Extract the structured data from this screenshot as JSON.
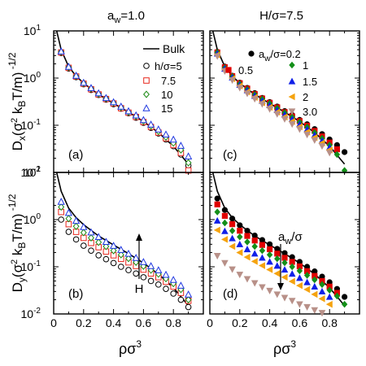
{
  "figure": {
    "top_left_title": "a_w=1.0",
    "top_right_title": "H/σ=7.5",
    "ylabel_top": "D_x(σ² k_B T/m)^-1/2",
    "ylabel_bottom": "D_y(σ² k_B T/m)^-1/2",
    "xlabel": "ρσ³"
  },
  "colors": {
    "bulk": "#000000",
    "h5": "#000000",
    "h7_5": "#e8261c",
    "h10": "#1b8a14",
    "h15": "#1f37e0",
    "a0_2": "#000000",
    "a0_5": "#e00000",
    "a1": "#138f19",
    "a1_5": "#1020e8",
    "a2": "#f5a30f",
    "a3": "#b89088"
  },
  "chart_data": [
    {
      "panel": "(a)",
      "type": "scatter",
      "title": "a_w=1.0",
      "ylabel": "D_x(σ² k_B T/m)^-1/2",
      "xlabel": "",
      "xlim": [
        0,
        1.0
      ],
      "ylim": [
        0.01,
        10
      ],
      "yscale": "log",
      "xticks": [
        0,
        0.2,
        0.4,
        0.6,
        0.8
      ],
      "yticks": [
        "10^-2",
        "10^-1",
        "10^0",
        "10^1"
      ],
      "legend": [
        "Bulk",
        "h/σ=5",
        "7.5",
        "10",
        "15"
      ],
      "curve": {
        "name": "Bulk",
        "x": [
          0.02,
          0.05,
          0.1,
          0.15,
          0.2,
          0.3,
          0.4,
          0.5,
          0.6,
          0.7,
          0.8,
          0.9
        ],
        "y": [
          10,
          4.0,
          1.75,
          1.1,
          0.78,
          0.45,
          0.29,
          0.19,
          0.12,
          0.07,
          0.036,
          0.015
        ]
      },
      "series": [
        {
          "name": "h/σ=5",
          "marker": "circle-open",
          "x": [
            0.05,
            0.1,
            0.15,
            0.2,
            0.25,
            0.3,
            0.35,
            0.4,
            0.45,
            0.5,
            0.55,
            0.6,
            0.65,
            0.7,
            0.75,
            0.8,
            0.85,
            0.9
          ],
          "y": [
            3.4,
            1.6,
            1.05,
            0.74,
            0.56,
            0.44,
            0.35,
            0.28,
            0.225,
            0.18,
            0.145,
            0.113,
            0.088,
            0.067,
            0.05,
            0.036,
            0.024,
            0.014
          ]
        },
        {
          "name": "7.5",
          "marker": "square-open",
          "x": [
            0.05,
            0.1,
            0.15,
            0.2,
            0.25,
            0.3,
            0.35,
            0.4,
            0.45,
            0.5,
            0.55,
            0.6,
            0.65,
            0.7,
            0.75,
            0.8,
            0.85,
            0.9
          ],
          "y": [
            3.5,
            1.65,
            1.08,
            0.76,
            0.58,
            0.45,
            0.36,
            0.29,
            0.23,
            0.185,
            0.15,
            0.117,
            0.092,
            0.07,
            0.053,
            0.038,
            0.026,
            0.011
          ]
        },
        {
          "name": "10",
          "marker": "diamond-open",
          "x": [
            0.05,
            0.1,
            0.15,
            0.2,
            0.25,
            0.3,
            0.35,
            0.4,
            0.45,
            0.5,
            0.55,
            0.6,
            0.65,
            0.7,
            0.75,
            0.8,
            0.85,
            0.9
          ],
          "y": [
            3.6,
            1.7,
            1.1,
            0.78,
            0.6,
            0.46,
            0.37,
            0.3,
            0.24,
            0.19,
            0.155,
            0.122,
            0.096,
            0.074,
            0.056,
            0.042,
            0.03,
            0.016
          ]
        },
        {
          "name": "15",
          "marker": "triangle-open",
          "x": [
            0.05,
            0.1,
            0.15,
            0.2,
            0.25,
            0.3,
            0.35,
            0.4,
            0.45,
            0.5,
            0.55,
            0.6,
            0.65,
            0.7,
            0.75,
            0.8,
            0.85,
            0.9
          ],
          "y": [
            3.7,
            1.75,
            1.13,
            0.8,
            0.62,
            0.48,
            0.38,
            0.31,
            0.25,
            0.2,
            0.163,
            0.13,
            0.104,
            0.082,
            0.064,
            0.05,
            0.037,
            0.022
          ]
        }
      ]
    },
    {
      "panel": "(c)",
      "type": "scatter",
      "title": "H/σ=7.5",
      "xlim": [
        0,
        1.0
      ],
      "ylim": [
        0.01,
        10
      ],
      "yscale": "log",
      "legend": [
        "a_w/σ=0.2",
        "0.5",
        "1",
        "1.5",
        "2",
        "3.0"
      ],
      "curve": {
        "name": "Bulk",
        "x": [
          0.02,
          0.05,
          0.1,
          0.15,
          0.2,
          0.3,
          0.4,
          0.5,
          0.6,
          0.7,
          0.8,
          0.9
        ],
        "y": [
          10,
          4.0,
          1.75,
          1.1,
          0.78,
          0.45,
          0.29,
          0.19,
          0.12,
          0.07,
          0.036,
          0.015
        ]
      },
      "series": [
        {
          "name": "a_w/σ=0.2",
          "marker": "circle",
          "x": [
            0.05,
            0.1,
            0.15,
            0.2,
            0.25,
            0.3,
            0.35,
            0.4,
            0.45,
            0.5,
            0.55,
            0.6,
            0.65,
            0.7,
            0.75,
            0.8,
            0.85,
            0.9
          ],
          "y": [
            3.6,
            1.75,
            1.12,
            0.8,
            0.62,
            0.48,
            0.38,
            0.31,
            0.25,
            0.2,
            0.165,
            0.13,
            0.105,
            0.083,
            0.065,
            0.05,
            0.038,
            0.027
          ]
        },
        {
          "name": "0.5",
          "marker": "square",
          "x": [
            0.05,
            0.1,
            0.15,
            0.2,
            0.25,
            0.3,
            0.35,
            0.4,
            0.45,
            0.5,
            0.55,
            0.6,
            0.65,
            0.7,
            0.75,
            0.8,
            0.85
          ],
          "y": [
            3.5,
            1.7,
            1.1,
            0.78,
            0.6,
            0.46,
            0.37,
            0.3,
            0.24,
            0.19,
            0.155,
            0.123,
            0.098,
            0.076,
            0.058,
            0.043,
            0.031
          ]
        },
        {
          "name": "1",
          "marker": "diamond",
          "x": [
            0.05,
            0.1,
            0.15,
            0.2,
            0.25,
            0.3,
            0.35,
            0.4,
            0.45,
            0.5,
            0.55,
            0.6,
            0.65,
            0.7,
            0.75,
            0.8,
            0.85,
            0.9
          ],
          "y": [
            3.5,
            1.65,
            1.08,
            0.76,
            0.58,
            0.45,
            0.36,
            0.29,
            0.23,
            0.185,
            0.15,
            0.117,
            0.092,
            0.07,
            0.053,
            0.038,
            0.024,
            0.011
          ]
        },
        {
          "name": "1.5",
          "marker": "triangle-up",
          "x": [
            0.05,
            0.1,
            0.15,
            0.2,
            0.25,
            0.3,
            0.35,
            0.4,
            0.45,
            0.5,
            0.55,
            0.6,
            0.65,
            0.7,
            0.75,
            0.8
          ],
          "y": [
            3.3,
            1.58,
            1.03,
            0.72,
            0.55,
            0.42,
            0.33,
            0.265,
            0.21,
            0.168,
            0.135,
            0.105,
            0.082,
            0.062,
            0.047,
            0.034
          ]
        },
        {
          "name": "2",
          "marker": "triangle-left",
          "x": [
            0.05,
            0.1,
            0.15,
            0.2,
            0.25,
            0.3,
            0.35,
            0.4,
            0.45,
            0.5,
            0.55,
            0.6,
            0.65,
            0.7,
            0.75,
            0.8
          ],
          "y": [
            3.1,
            1.5,
            0.97,
            0.68,
            0.51,
            0.39,
            0.3,
            0.24,
            0.19,
            0.15,
            0.12,
            0.093,
            0.072,
            0.055,
            0.042,
            0.03
          ]
        },
        {
          "name": "3.0",
          "marker": "triangle-down",
          "x": [
            0.05,
            0.1,
            0.15,
            0.2,
            0.25,
            0.3,
            0.35,
            0.4,
            0.45,
            0.5,
            0.55,
            0.6,
            0.65,
            0.7,
            0.75,
            0.8
          ],
          "y": [
            2.9,
            1.4,
            0.9,
            0.62,
            0.47,
            0.36,
            0.28,
            0.22,
            0.172,
            0.135,
            0.105,
            0.082,
            0.063,
            0.048,
            0.036,
            0.026
          ]
        }
      ]
    },
    {
      "panel": "(b)",
      "type": "scatter",
      "ylabel": "D_y(σ² k_B T/m)^-1/2",
      "xlabel": "ρσ³",
      "xlim": [
        0,
        1.0
      ],
      "ylim": [
        0.01,
        10
      ],
      "yscale": "log",
      "xticks": [
        0,
        0.2,
        0.4,
        0.6,
        0.8
      ],
      "yticks": [
        "10^-2",
        "10^-1",
        "10^0",
        "10^1"
      ],
      "annotation": "H",
      "curve": {
        "name": "Bulk",
        "x": [
          0.02,
          0.05,
          0.1,
          0.15,
          0.2,
          0.3,
          0.4,
          0.5,
          0.6,
          0.7,
          0.8,
          0.9
        ],
        "y": [
          10,
          4.0,
          1.75,
          1.1,
          0.78,
          0.45,
          0.29,
          0.19,
          0.12,
          0.07,
          0.036,
          0.015
        ]
      },
      "series": [
        {
          "name": "h/σ=5",
          "marker": "circle-open",
          "x": [
            0.05,
            0.1,
            0.15,
            0.2,
            0.25,
            0.3,
            0.35,
            0.4,
            0.45,
            0.5,
            0.55,
            0.6,
            0.65,
            0.7,
            0.75,
            0.8,
            0.85,
            0.9
          ],
          "y": [
            1.0,
            0.55,
            0.38,
            0.28,
            0.22,
            0.175,
            0.145,
            0.12,
            0.1,
            0.085,
            0.072,
            0.06,
            0.05,
            0.042,
            0.034,
            0.027,
            0.02,
            0.014
          ]
        },
        {
          "name": "7.5",
          "marker": "square-open",
          "x": [
            0.05,
            0.1,
            0.15,
            0.2,
            0.25,
            0.3,
            0.35,
            0.4,
            0.45,
            0.5,
            0.55,
            0.6,
            0.65,
            0.7,
            0.75,
            0.8,
            0.85,
            0.9
          ],
          "y": [
            1.45,
            0.8,
            0.55,
            0.41,
            0.32,
            0.26,
            0.21,
            0.175,
            0.147,
            0.124,
            0.104,
            0.087,
            0.072,
            0.06,
            0.048,
            0.038,
            0.028,
            0.019
          ]
        },
        {
          "name": "10",
          "marker": "diamond-open",
          "x": [
            0.05,
            0.1,
            0.15,
            0.2,
            0.25,
            0.3,
            0.35,
            0.4,
            0.45,
            0.5,
            0.55,
            0.6,
            0.65,
            0.7,
            0.75,
            0.8,
            0.85,
            0.9
          ],
          "y": [
            1.85,
            1.05,
            0.72,
            0.53,
            0.41,
            0.33,
            0.27,
            0.22,
            0.18,
            0.15,
            0.125,
            0.103,
            0.085,
            0.07,
            0.056,
            0.044,
            0.033,
            0.02
          ]
        },
        {
          "name": "15",
          "marker": "triangle-open",
          "x": [
            0.05,
            0.1,
            0.15,
            0.2,
            0.25,
            0.3,
            0.35,
            0.4,
            0.45,
            0.5,
            0.55,
            0.6,
            0.65,
            0.7,
            0.75,
            0.8,
            0.85,
            0.9
          ],
          "y": [
            2.4,
            1.4,
            0.95,
            0.7,
            0.54,
            0.43,
            0.34,
            0.28,
            0.23,
            0.19,
            0.155,
            0.127,
            0.104,
            0.085,
            0.068,
            0.053,
            0.04,
            0.026
          ]
        }
      ]
    },
    {
      "panel": "(d)",
      "type": "scatter",
      "xlabel": "ρσ³",
      "xlim": [
        0,
        1.0
      ],
      "ylim": [
        0.01,
        10
      ],
      "yscale": "log",
      "xticks": [
        0,
        0.2,
        0.4,
        0.6,
        0.8
      ],
      "annotation": "a_w/σ",
      "curve": {
        "name": "Bulk",
        "x": [
          0.02,
          0.05,
          0.1,
          0.15,
          0.2,
          0.3,
          0.4,
          0.5,
          0.6,
          0.7,
          0.8,
          0.9
        ],
        "y": [
          10,
          4.0,
          1.75,
          1.1,
          0.78,
          0.45,
          0.29,
          0.19,
          0.12,
          0.07,
          0.036,
          0.015
        ]
      },
      "series": [
        {
          "name": "a_w/σ=0.2",
          "marker": "circle",
          "x": [
            0.05,
            0.1,
            0.15,
            0.2,
            0.25,
            0.3,
            0.35,
            0.4,
            0.45,
            0.5,
            0.55,
            0.6,
            0.65,
            0.7,
            0.75,
            0.8,
            0.85,
            0.9
          ],
          "y": [
            2.8,
            1.6,
            1.05,
            0.76,
            0.58,
            0.46,
            0.37,
            0.3,
            0.24,
            0.195,
            0.16,
            0.127,
            0.1,
            0.08,
            0.062,
            0.047,
            0.034,
            0.023
          ]
        },
        {
          "name": "0.5",
          "marker": "square",
          "x": [
            0.05,
            0.1,
            0.15,
            0.2,
            0.25,
            0.3,
            0.35,
            0.4,
            0.45,
            0.5,
            0.55,
            0.6,
            0.65,
            0.7,
            0.75,
            0.8,
            0.85
          ],
          "y": [
            2.1,
            1.2,
            0.8,
            0.58,
            0.45,
            0.36,
            0.29,
            0.235,
            0.19,
            0.155,
            0.127,
            0.102,
            0.081,
            0.064,
            0.05,
            0.038,
            0.028
          ]
        },
        {
          "name": "1",
          "marker": "diamond",
          "x": [
            0.05,
            0.1,
            0.15,
            0.2,
            0.25,
            0.3,
            0.35,
            0.4,
            0.45,
            0.5,
            0.55,
            0.6,
            0.65,
            0.7,
            0.75,
            0.8,
            0.85,
            0.9
          ],
          "y": [
            1.45,
            0.85,
            0.58,
            0.43,
            0.335,
            0.27,
            0.22,
            0.18,
            0.148,
            0.122,
            0.1,
            0.082,
            0.066,
            0.053,
            0.042,
            0.032,
            0.024,
            0.016
          ]
        },
        {
          "name": "1.5",
          "marker": "triangle-up",
          "x": [
            0.05,
            0.1,
            0.15,
            0.2,
            0.25,
            0.3,
            0.35,
            0.4,
            0.45,
            0.5,
            0.55,
            0.6,
            0.65,
            0.7,
            0.75,
            0.8
          ],
          "y": [
            0.95,
            0.57,
            0.4,
            0.3,
            0.235,
            0.19,
            0.155,
            0.128,
            0.105,
            0.087,
            0.071,
            0.058,
            0.047,
            0.038,
            0.03,
            0.023
          ]
        },
        {
          "name": "2",
          "marker": "triangle-left",
          "x": [
            0.05,
            0.1,
            0.15,
            0.2,
            0.25,
            0.3,
            0.35,
            0.4,
            0.45,
            0.5,
            0.55,
            0.6,
            0.65,
            0.7,
            0.75,
            0.8
          ],
          "y": [
            0.6,
            0.38,
            0.27,
            0.2,
            0.16,
            0.13,
            0.106,
            0.087,
            0.072,
            0.06,
            0.049,
            0.04,
            0.033,
            0.026,
            0.021,
            0.016
          ]
        },
        {
          "name": "3.0",
          "marker": "triangle-down",
          "x": [
            0.05,
            0.1,
            0.15,
            0.2,
            0.25,
            0.3,
            0.35,
            0.4,
            0.45,
            0.5,
            0.55,
            0.6,
            0.65,
            0.7,
            0.75,
            0.8
          ],
          "y": [
            0.17,
            0.12,
            0.088,
            0.068,
            0.055,
            0.045,
            0.037,
            0.031,
            0.026,
            0.022,
            0.019,
            0.016,
            0.014,
            0.012,
            0.0105,
            0.0095
          ]
        }
      ]
    }
  ]
}
